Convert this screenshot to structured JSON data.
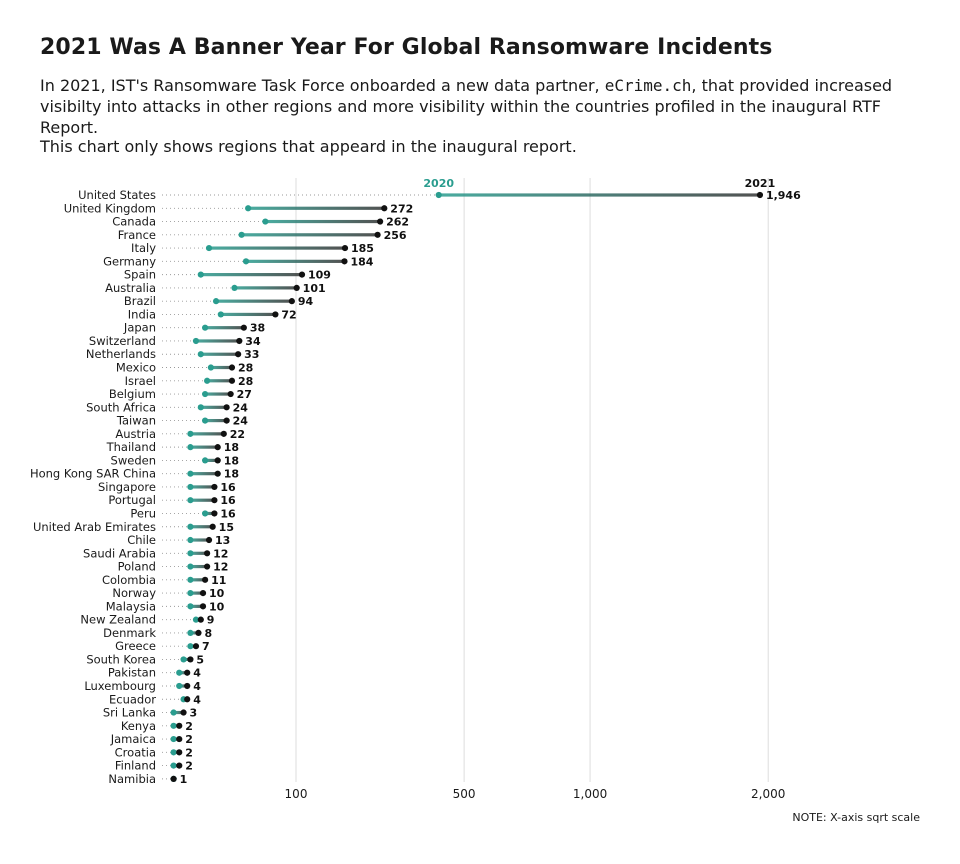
{
  "title": "2021 Was A Banner Year For Global Ransomware Incidents",
  "subtitle": {
    "before": "In 2021, IST's Ransomware Task Force onboarded a new data partner, ",
    "code": "eCrime.ch",
    "after": ", that provided increased visibilty into attacks in other regions and more visibility within the countries profiled in the inaugural RTF Report."
  },
  "note": "This chart only shows regions that appeard in the inaugural report.",
  "footnote": "NOTE: X-axis sqrt scale",
  "colors": {
    "y2020": "#2a9d8f",
    "y2021": "#111111",
    "grid": "#dddddd"
  },
  "chart_data": {
    "type": "dumbbell",
    "x_scale": "sqrt",
    "xlim": [
      0,
      2300
    ],
    "x_ticks": [
      {
        "value": 100,
        "label": "100"
      },
      {
        "value": 500,
        "label": "500"
      },
      {
        "value": 1000,
        "label": "1,000"
      },
      {
        "value": 2000,
        "label": "2,000"
      }
    ],
    "series_labels": [
      "2020",
      "2021"
    ],
    "rows": [
      {
        "region": "United States",
        "y2020": 420,
        "y2021": 1946,
        "label": "1,946"
      },
      {
        "region": "United Kingdom",
        "y2020": 42,
        "y2021": 272,
        "label": "272"
      },
      {
        "region": "Canada",
        "y2020": 60,
        "y2021": 262,
        "label": "262"
      },
      {
        "region": "France",
        "y2020": 36,
        "y2021": 256,
        "label": "256"
      },
      {
        "region": "Italy",
        "y2020": 13,
        "y2021": 185,
        "label": "185"
      },
      {
        "region": "Germany",
        "y2020": 40,
        "y2021": 184,
        "label": "184"
      },
      {
        "region": "Spain",
        "y2020": 9,
        "y2021": 109,
        "label": "109"
      },
      {
        "region": "Australia",
        "y2020": 30,
        "y2021": 101,
        "label": "101"
      },
      {
        "region": "Brazil",
        "y2020": 17,
        "y2021": 94,
        "label": "94"
      },
      {
        "region": "India",
        "y2020": 20,
        "y2021": 72,
        "label": "72"
      },
      {
        "region": "Japan",
        "y2020": 11,
        "y2021": 38,
        "label": "38"
      },
      {
        "region": "Switzerland",
        "y2020": 7,
        "y2021": 34,
        "label": "34"
      },
      {
        "region": "Netherlands",
        "y2020": 9,
        "y2021": 33,
        "label": "33"
      },
      {
        "region": "Mexico",
        "y2020": 14,
        "y2021": 28,
        "label": "28"
      },
      {
        "region": "Israel",
        "y2020": 12,
        "y2021": 28,
        "label": "28"
      },
      {
        "region": "Belgium",
        "y2020": 11,
        "y2021": 27,
        "label": "27"
      },
      {
        "region": "South Africa",
        "y2020": 9,
        "y2021": 24,
        "label": "24"
      },
      {
        "region": "Taiwan",
        "y2020": 11,
        "y2021": 24,
        "label": "24"
      },
      {
        "region": "Austria",
        "y2020": 5,
        "y2021": 22,
        "label": "22"
      },
      {
        "region": "Thailand",
        "y2020": 5,
        "y2021": 18,
        "label": "18"
      },
      {
        "region": "Sweden",
        "y2020": 11,
        "y2021": 18,
        "label": "18"
      },
      {
        "region": "Hong Kong SAR China",
        "y2020": 5,
        "y2021": 18,
        "label": "18"
      },
      {
        "region": "Singapore",
        "y2020": 5,
        "y2021": 16,
        "label": "16"
      },
      {
        "region": "Portugal",
        "y2020": 5,
        "y2021": 16,
        "label": "16"
      },
      {
        "region": "Peru",
        "y2020": 11,
        "y2021": 16,
        "label": "16"
      },
      {
        "region": "United Arab Emirates",
        "y2020": 5,
        "y2021": 15,
        "label": "15"
      },
      {
        "region": "Chile",
        "y2020": 5,
        "y2021": 13,
        "label": "13"
      },
      {
        "region": "Saudi Arabia",
        "y2020": 5,
        "y2021": 12,
        "label": "12"
      },
      {
        "region": "Poland",
        "y2020": 5,
        "y2021": 12,
        "label": "12"
      },
      {
        "region": "Colombia",
        "y2020": 5,
        "y2021": 11,
        "label": "11"
      },
      {
        "region": "Norway",
        "y2020": 5,
        "y2021": 10,
        "label": "10"
      },
      {
        "region": "Malaysia",
        "y2020": 5,
        "y2021": 10,
        "label": "10"
      },
      {
        "region": "New Zealand",
        "y2020": 7,
        "y2021": 9,
        "label": "9"
      },
      {
        "region": "Denmark",
        "y2020": 5,
        "y2021": 8,
        "label": "8"
      },
      {
        "region": "Greece",
        "y2020": 5,
        "y2021": 7,
        "label": "7"
      },
      {
        "region": "South Korea",
        "y2020": 3,
        "y2021": 5,
        "label": "5"
      },
      {
        "region": "Pakistan",
        "y2020": 2,
        "y2021": 4,
        "label": "4"
      },
      {
        "region": "Luxembourg",
        "y2020": 2,
        "y2021": 4,
        "label": "4"
      },
      {
        "region": "Ecuador",
        "y2020": 3,
        "y2021": 4,
        "label": "4"
      },
      {
        "region": "Sri Lanka",
        "y2020": 1,
        "y2021": 3,
        "label": "3"
      },
      {
        "region": "Kenya",
        "y2020": 1,
        "y2021": 2,
        "label": "2"
      },
      {
        "region": "Jamaica",
        "y2020": 1,
        "y2021": 2,
        "label": "2"
      },
      {
        "region": "Croatia",
        "y2020": 1,
        "y2021": 2,
        "label": "2"
      },
      {
        "region": "Finland",
        "y2020": 1,
        "y2021": 2,
        "label": "2"
      },
      {
        "region": "Namibia",
        "y2020": 1,
        "y2021": 1,
        "label": "1"
      }
    ]
  }
}
